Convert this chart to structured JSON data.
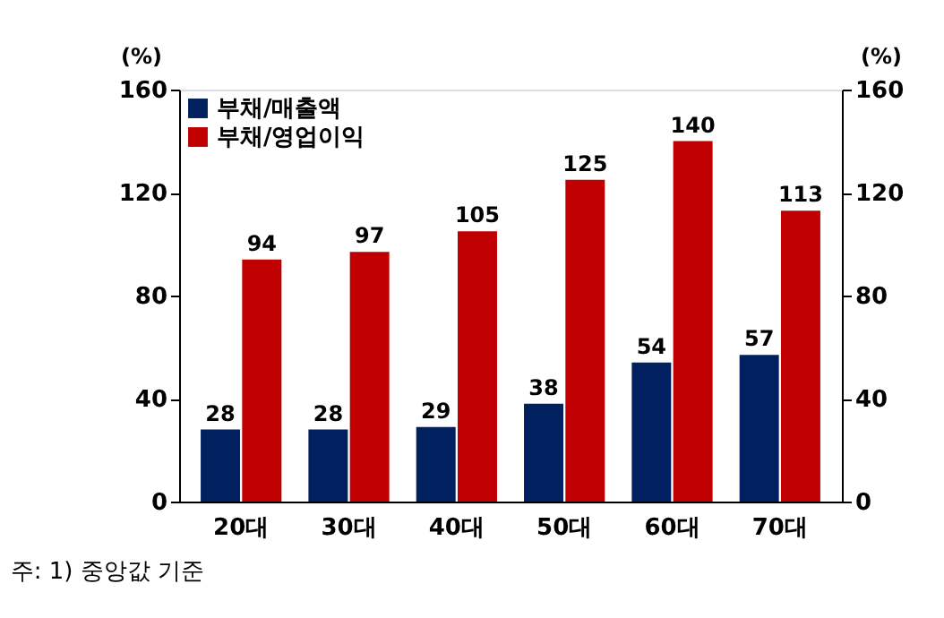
{
  "chart_data": {
    "type": "bar",
    "ylabel": "(%)",
    "y2label": "(%)",
    "categories": [
      "20대",
      "30대",
      "40대",
      "50대",
      "60대",
      "70대"
    ],
    "series": [
      {
        "name": "부채/매출액",
        "color": "#002060",
        "values": [
          28,
          28,
          29,
          38,
          54,
          57
        ]
      },
      {
        "name": "부채/영업이익",
        "color": "#c00000",
        "values": [
          94,
          97,
          105,
          125,
          140,
          113
        ]
      }
    ],
    "ylim": [
      0,
      160
    ],
    "yticks": [
      0,
      40,
      80,
      120,
      160
    ],
    "y2lim": [
      0,
      160
    ],
    "y2ticks": [
      0,
      40,
      80,
      120,
      160
    ],
    "data_labels": true,
    "legend": "top left",
    "grid": false,
    "annotations": [
      "주: 1) 중앙값 기준"
    ]
  }
}
